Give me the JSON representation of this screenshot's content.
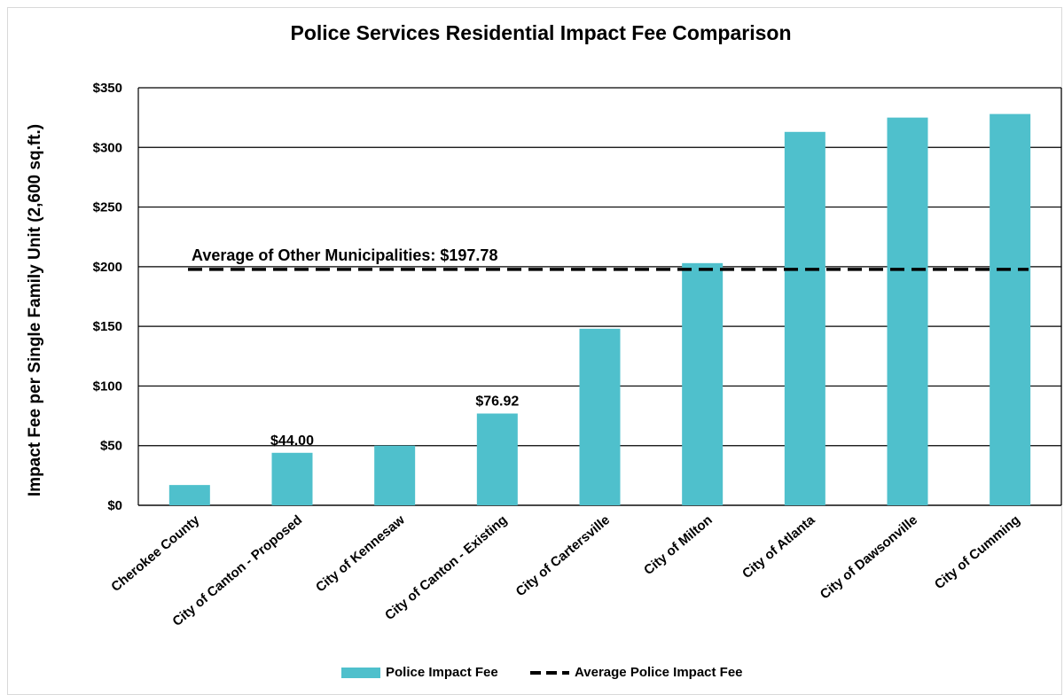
{
  "chart_data": {
    "type": "bar",
    "title": "Police Services Residential Impact Fee Comparison",
    "ylabel": "Impact Fee per Single Family Unit (2,600 sq.ft.)",
    "xlabel": "",
    "ylim": [
      0,
      350
    ],
    "yticks": [
      0,
      50,
      100,
      150,
      200,
      250,
      300,
      350
    ],
    "ytick_labels": [
      "$0",
      "$50",
      "$100",
      "$150",
      "$200",
      "$250",
      "$300",
      "$350"
    ],
    "grid": true,
    "categories": [
      "Cherokee County",
      "City of Canton - Proposed",
      "City of Kennesaw",
      "City of Canton - Existing",
      "City of Cartersville",
      "City of Milton",
      "City of Atlanta",
      "City of Dawsonville",
      "City of Cumming"
    ],
    "series": [
      {
        "name": "Police Impact Fee",
        "values": [
          17,
          44.0,
          50,
          76.92,
          148,
          203,
          313,
          325,
          328
        ],
        "color": "#4fc0cc"
      }
    ],
    "data_labels": [
      {
        "index": 1,
        "text": "$44.00"
      },
      {
        "index": 3,
        "text": "$76.92"
      }
    ],
    "reference_line": {
      "name": "Average Police Impact Fee",
      "value": 197.78,
      "label": "Average of Other Municipalities: $197.78",
      "style": "dashed",
      "color": "#000000"
    },
    "legend": {
      "placement": "bottom",
      "entries": [
        "Police Impact Fee",
        "Average Police Impact Fee"
      ]
    }
  }
}
